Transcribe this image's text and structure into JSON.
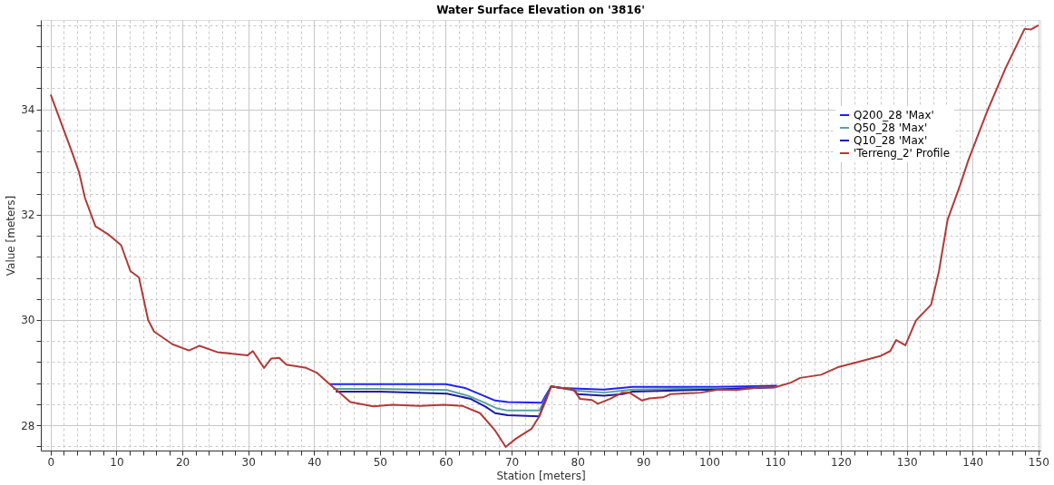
{
  "chart_data": {
    "type": "line",
    "title": "Water Surface Elevation on '3816'",
    "xlabel": "Station [meters]",
    "ylabel": "Value [meters]",
    "xlim": [
      -1.5,
      150.3
    ],
    "ylim": [
      27.52,
      35.7
    ],
    "xticks": [
      0,
      {
        "value": 2,
        "label": null
      },
      {
        "value": 4,
        "label": null
      },
      {
        "value": 6,
        "label": null
      },
      {
        "value": 8,
        "label": null
      },
      10,
      {
        "value": 12,
        "label": null
      },
      {
        "value": 14,
        "label": null
      },
      {
        "value": 16,
        "label": null
      },
      {
        "value": 18,
        "label": null
      },
      20,
      {
        "value": 22,
        "label": null
      },
      {
        "value": 24,
        "label": null
      },
      {
        "value": 26,
        "label": null
      },
      {
        "value": 28,
        "label": null
      },
      30,
      {
        "value": 32,
        "label": null
      },
      {
        "value": 34,
        "label": null
      },
      {
        "value": 36,
        "label": null
      },
      {
        "value": 38,
        "label": null
      },
      40,
      {
        "value": 42,
        "label": null
      },
      {
        "value": 44,
        "label": null
      },
      {
        "value": 46,
        "label": null
      },
      {
        "value": 48,
        "label": null
      },
      50,
      {
        "value": 52,
        "label": null
      },
      {
        "value": 54,
        "label": null
      },
      {
        "value": 56,
        "label": null
      },
      {
        "value": 58,
        "label": null
      },
      60,
      {
        "value": 62,
        "label": null
      },
      {
        "value": 64,
        "label": null
      },
      {
        "value": 66,
        "label": null
      },
      {
        "value": 68,
        "label": null
      },
      70,
      {
        "value": 72,
        "label": null
      },
      {
        "value": 74,
        "label": null
      },
      {
        "value": 76,
        "label": null
      },
      {
        "value": 78,
        "label": null
      },
      80,
      {
        "value": 82,
        "label": null
      },
      {
        "value": 84,
        "label": null
      },
      {
        "value": 86,
        "label": null
      },
      {
        "value": 88,
        "label": null
      },
      90,
      {
        "value": 92,
        "label": null
      },
      {
        "value": 94,
        "label": null
      },
      {
        "value": 96,
        "label": null
      },
      {
        "value": 98,
        "label": null
      },
      100,
      {
        "value": 102,
        "label": null
      },
      {
        "value": 104,
        "label": null
      },
      {
        "value": 106,
        "label": null
      },
      {
        "value": 108,
        "label": null
      },
      110,
      {
        "value": 112,
        "label": null
      },
      {
        "value": 114,
        "label": null
      },
      {
        "value": 116,
        "label": null
      },
      {
        "value": 118,
        "label": null
      },
      120,
      {
        "value": 122,
        "label": null
      },
      {
        "value": 124,
        "label": null
      },
      {
        "value": 126,
        "label": null
      },
      {
        "value": 128,
        "label": null
      },
      130,
      {
        "value": 132,
        "label": null
      },
      {
        "value": 134,
        "label": null
      },
      {
        "value": 136,
        "label": null
      },
      {
        "value": 138,
        "label": null
      },
      140,
      {
        "value": 142,
        "label": null
      },
      {
        "value": 144,
        "label": null
      },
      {
        "value": 146,
        "label": null
      },
      {
        "value": 148,
        "label": null
      },
      150
    ],
    "yticks": [
      {
        "value": 27.6,
        "label": null
      },
      28,
      {
        "value": 28.4,
        "label": null
      },
      {
        "value": 28.8,
        "label": null
      },
      {
        "value": 29.2,
        "label": null
      },
      {
        "value": 29.6,
        "label": null
      },
      30,
      {
        "value": 30.4,
        "label": null
      },
      {
        "value": 30.8,
        "label": null
      },
      {
        "value": 31.2,
        "label": null
      },
      {
        "value": 31.6,
        "label": null
      },
      32,
      {
        "value": 32.4,
        "label": null
      },
      {
        "value": 32.8,
        "label": null
      },
      {
        "value": 33.2,
        "label": null
      },
      {
        "value": 33.6,
        "label": null
      },
      34,
      {
        "value": 34.4,
        "label": null
      },
      {
        "value": 34.8,
        "label": null
      },
      {
        "value": 35.2,
        "label": null
      },
      {
        "value": 35.6,
        "label": null
      }
    ],
    "grid": true,
    "legend": "top right",
    "line_style": "solid",
    "marker": "none",
    "series": [
      {
        "name": "Q200_28 'Max'",
        "color": "#2020ff",
        "x": [
          42.3,
          50,
          60,
          62.9,
          65.2,
          67.5,
          69.4,
          74.6,
          75.1,
          76.0,
          77.6,
          79.4,
          84.0,
          88.4,
          95,
          101,
          105,
          110.3
        ],
        "values": [
          28.78,
          28.78,
          28.78,
          28.71,
          28.59,
          28.47,
          28.44,
          28.43,
          28.55,
          28.74,
          28.71,
          28.7,
          28.68,
          28.73,
          28.73,
          28.73,
          28.74,
          28.75
        ]
      },
      {
        "name": "Q50_28 'Max'",
        "color": "#5aa0a0",
        "x": [
          42.9,
          50,
          60.2,
          63.4,
          65.7,
          67.8,
          69.4,
          74.2,
          74.9,
          76.0,
          77.6,
          79.4,
          84.0,
          88.4,
          95,
          101,
          105,
          110.0
        ],
        "values": [
          28.69,
          28.69,
          28.67,
          28.56,
          28.44,
          28.32,
          28.28,
          28.28,
          28.45,
          28.74,
          28.71,
          28.66,
          28.62,
          28.68,
          28.69,
          28.7,
          28.71,
          28.72
        ]
      },
      {
        "name": "Q10_28 'Max'",
        "color": "#1a1aa0",
        "x": [
          43.3,
          50,
          60.2,
          63.8,
          66.1,
          67.5,
          69.4,
          74.2,
          74.8,
          76.0,
          77.6,
          79.4,
          80.0,
          84.0,
          86.8,
          88.4,
          95,
          101,
          105,
          109.8
        ],
        "values": [
          28.64,
          28.64,
          28.6,
          28.5,
          28.35,
          28.23,
          28.19,
          28.17,
          28.38,
          28.74,
          28.71,
          28.68,
          28.59,
          28.56,
          28.59,
          28.64,
          28.66,
          28.68,
          28.7,
          28.72
        ]
      },
      {
        "name": "'Terreng_2' Profile",
        "color": "#b03a3a",
        "x": [
          0,
          3.2,
          4.3,
          5.2,
          6.8,
          8.7,
          10.7,
          12.1,
          13.4,
          14.8,
          15.7,
          18.5,
          21.0,
          22.6,
          25.3,
          29.9,
          30.7,
          32.4,
          33.5,
          34.7,
          35.8,
          38.8,
          40.4,
          42.0,
          43.5,
          45.5,
          49.0,
          51.9,
          56.1,
          59.7,
          62.5,
          65.2,
          67.5,
          69.1,
          70.7,
          73.0,
          74.2,
          75.3,
          76.0,
          77.6,
          79.4,
          80.4,
          82.2,
          83.1,
          84.9,
          86.8,
          87.9,
          89.8,
          90.9,
          93.0,
          94.1,
          98.7,
          101.4,
          104.1,
          107.8,
          110.0,
          112.4,
          113.8,
          117.0,
          119.7,
          122.5,
          126.1,
          127.5,
          128.4,
          129.8,
          131.4,
          133.7,
          134.9,
          136.2,
          138.1,
          139.4,
          142.2,
          145.0,
          147.9,
          148.9,
          150
        ],
        "values": [
          34.28,
          33.2,
          32.81,
          32.32,
          31.78,
          31.63,
          31.42,
          30.93,
          30.81,
          30.0,
          29.78,
          29.54,
          29.42,
          29.51,
          29.39,
          29.33,
          29.41,
          29.09,
          29.27,
          29.28,
          29.15,
          29.09,
          29.0,
          28.82,
          28.66,
          28.44,
          28.36,
          28.39,
          28.37,
          28.39,
          28.37,
          28.23,
          27.9,
          27.59,
          27.75,
          27.93,
          28.17,
          28.5,
          28.74,
          28.71,
          28.68,
          28.5,
          28.48,
          28.41,
          28.5,
          28.62,
          28.62,
          28.47,
          28.51,
          28.53,
          28.59,
          28.62,
          28.68,
          28.67,
          28.72,
          28.72,
          28.81,
          28.9,
          28.96,
          29.11,
          29.2,
          29.32,
          29.41,
          29.62,
          29.52,
          29.99,
          30.29,
          30.93,
          31.9,
          32.56,
          33.05,
          33.96,
          34.78,
          35.53,
          35.52,
          35.6
        ]
      }
    ]
  }
}
